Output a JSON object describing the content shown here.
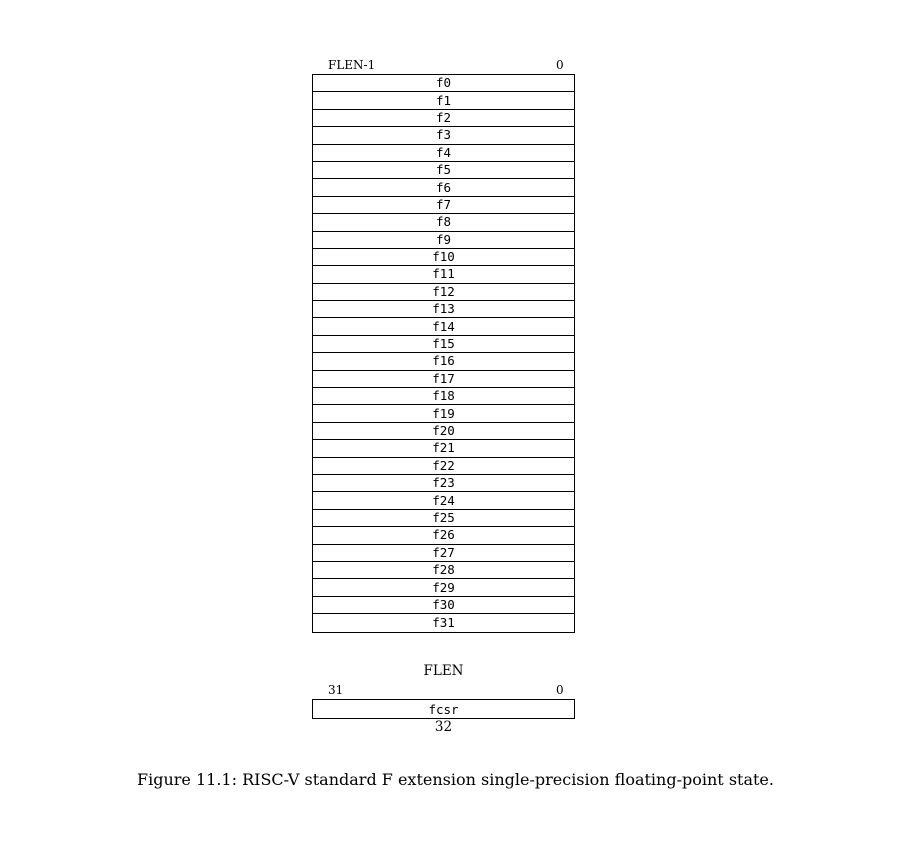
{
  "register_file": {
    "msb_label": "FLEN-1",
    "lsb_label": "0",
    "registers": [
      "f0",
      "f1",
      "f2",
      "f3",
      "f4",
      "f5",
      "f6",
      "f7",
      "f8",
      "f9",
      "f10",
      "f11",
      "f12",
      "f13",
      "f14",
      "f15",
      "f16",
      "f17",
      "f18",
      "f19",
      "f20",
      "f21",
      "f22",
      "f23",
      "f24",
      "f25",
      "f26",
      "f27",
      "f28",
      "f29",
      "f30",
      "f31"
    ],
    "width_label": "FLEN"
  },
  "csr": {
    "msb_label": "31",
    "lsb_label": "0",
    "name": "fcsr",
    "width_label": "32"
  },
  "caption": "Figure 11.1: RISC-V standard F extension single-precision floating-point state."
}
